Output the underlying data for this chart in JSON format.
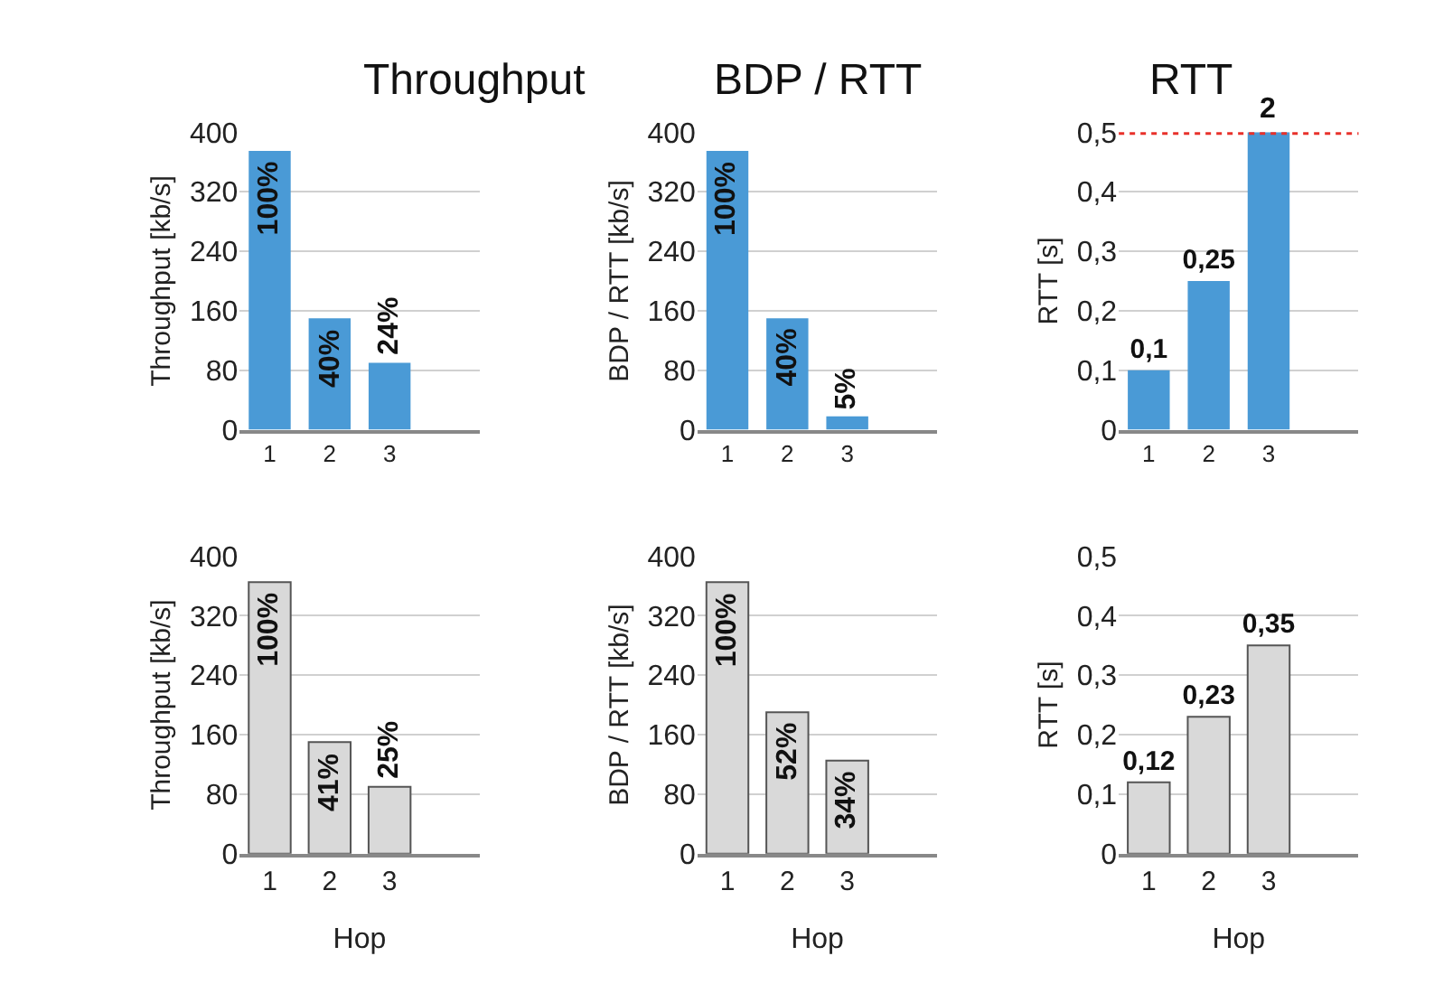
{
  "chart_data": [
    {
      "type": "bar",
      "title": "Throughput",
      "ylabel": "Throughput [kb/s]",
      "categories": [
        "1",
        "2",
        "3"
      ],
      "values": [
        375,
        150,
        90
      ],
      "color": "#4a9ad6",
      "ylim": [
        0,
        400
      ],
      "yticks": [
        0,
        80,
        160,
        240,
        320,
        400
      ],
      "grid": "y",
      "legend": false,
      "annotations": [
        {
          "text": "100%",
          "x": "1",
          "y": 375
        },
        {
          "text": "40%",
          "x": "2",
          "y": 150
        },
        {
          "text": "24%",
          "x": "3",
          "y": 90
        }
      ]
    },
    {
      "type": "bar",
      "title": "BDP / RTT",
      "ylabel": "BDP / RTT [kb/s]",
      "categories": [
        "1",
        "2",
        "3"
      ],
      "values": [
        375,
        150,
        18
      ],
      "color": "#4a9ad6",
      "ylim": [
        0,
        400
      ],
      "yticks": [
        0,
        80,
        160,
        240,
        320,
        400
      ],
      "grid": "y",
      "legend": false,
      "annotations": [
        {
          "text": "100%",
          "x": "1",
          "y": 375
        },
        {
          "text": "40%",
          "x": "2",
          "y": 150
        },
        {
          "text": "5%",
          "x": "3",
          "y": 18
        }
      ]
    },
    {
      "type": "bar",
      "title": "RTT",
      "ylabel": "RTT [s]",
      "categories": [
        "1",
        "2",
        "3"
      ],
      "values": [
        0.1,
        0.25,
        0.5
      ],
      "value_labels": [
        "0,1",
        "0,25",
        null
      ],
      "color": "#4a9ad6",
      "ylim": [
        0,
        0.5
      ],
      "yticks": [
        0,
        {
          "value": 0.1,
          "label": "0,1"
        },
        {
          "value": 0.2,
          "label": "0,2"
        },
        {
          "value": 0.3,
          "label": "0,3"
        },
        {
          "value": 0.4,
          "label": "0,4"
        },
        {
          "value": 0.5,
          "label": "0,5"
        }
      ],
      "grid": "y",
      "legend": false,
      "ref_lines": [
        {
          "axis": "y",
          "value": 0.5,
          "color": "#e8302a",
          "line_style": "dotted"
        }
      ],
      "annotations": [
        {
          "text": "2",
          "x": "3",
          "y": 0.5
        }
      ]
    },
    {
      "type": "bar",
      "xlabel": "Hop",
      "ylabel": "Throughput [kb/s]",
      "categories": [
        "1",
        "2",
        "3"
      ],
      "values": [
        365,
        150,
        90
      ],
      "color": "#d9d9d9",
      "ylim": [
        0,
        400
      ],
      "yticks": [
        0,
        80,
        160,
        240,
        320,
        400
      ],
      "grid": "y",
      "legend": false,
      "annotations": [
        {
          "text": "100%",
          "x": "1",
          "y": 365
        },
        {
          "text": "41%",
          "x": "2",
          "y": 150
        },
        {
          "text": "25%",
          "x": "3",
          "y": 90
        }
      ]
    },
    {
      "type": "bar",
      "xlabel": "Hop",
      "ylabel": "BDP / RTT [kb/s]",
      "categories": [
        "1",
        "2",
        "3"
      ],
      "values": [
        365,
        190,
        125
      ],
      "color": "#d9d9d9",
      "ylim": [
        0,
        400
      ],
      "yticks": [
        0,
        80,
        160,
        240,
        320,
        400
      ],
      "grid": "y",
      "legend": false,
      "annotations": [
        {
          "text": "100%",
          "x": "1",
          "y": 365
        },
        {
          "text": "52%",
          "x": "2",
          "y": 190
        },
        {
          "text": "34%",
          "x": "3",
          "y": 125
        }
      ]
    },
    {
      "type": "bar",
      "xlabel": "Hop",
      "ylabel": "RTT [s]",
      "categories": [
        "1",
        "2",
        "3"
      ],
      "values": [
        0.12,
        0.23,
        0.35
      ],
      "value_labels": [
        "0,12",
        "0,23",
        "0,35"
      ],
      "color": "#d9d9d9",
      "ylim": [
        0,
        0.5
      ],
      "yticks": [
        0,
        {
          "value": 0.1,
          "label": "0,1"
        },
        {
          "value": 0.2,
          "label": "0,2"
        },
        {
          "value": 0.3,
          "label": "0,3"
        },
        {
          "value": 0.4,
          "label": "0,4"
        },
        {
          "value": 0.5,
          "label": "0,5"
        }
      ],
      "grid": "y",
      "legend": false
    }
  ]
}
